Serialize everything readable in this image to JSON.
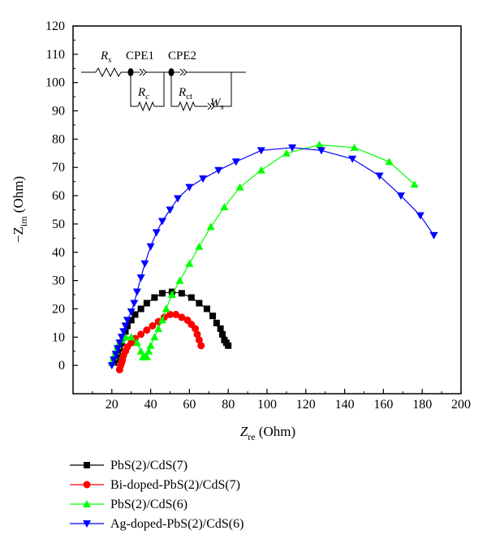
{
  "chart_data": {
    "type": "scatter",
    "xlabel_main": "Z",
    "xlabel_sub": "re",
    "xlabel_unit": " (Ohm)",
    "ylabel_prefix": "−Z",
    "ylabel_sub": "im",
    "ylabel_unit": " (Ohm)",
    "xlim": [
      0,
      200
    ],
    "ylim": [
      -10,
      120
    ],
    "xticks": [
      20,
      40,
      60,
      80,
      100,
      120,
      140,
      160,
      180,
      200
    ],
    "yticks": [
      0,
      10,
      20,
      30,
      40,
      50,
      60,
      70,
      80,
      90,
      100,
      110,
      120
    ],
    "legend_position": "below",
    "series": [
      {
        "name": "PbS(2)/CdS(7)",
        "color": "#000000",
        "marker": "square",
        "x": [
          21,
          22,
          23,
          24,
          25,
          26,
          27,
          28,
          30,
          32,
          35,
          38,
          42,
          46,
          51,
          56,
          61,
          65,
          69,
          72,
          74,
          76,
          77,
          78,
          79,
          80
        ],
        "y": [
          1,
          2,
          4,
          6,
          8,
          10,
          12,
          14,
          16,
          18,
          20,
          22,
          24,
          25.5,
          26,
          25.5,
          24,
          22,
          20,
          17.5,
          15,
          13,
          11,
          9,
          8,
          7
        ]
      },
      {
        "name": "Bi-doped-PbS(2)/CdS(7)",
        "color": "#ff0000",
        "marker": "circle",
        "x": [
          24,
          24.5,
          25,
          25.5,
          26,
          27,
          28,
          30,
          32,
          35,
          38,
          41,
          44,
          47,
          50,
          53,
          56,
          59,
          61,
          63,
          64,
          65,
          66
        ],
        "y": [
          -1.5,
          0,
          1,
          2,
          3.5,
          5,
          6.5,
          8,
          9.5,
          11,
          12.5,
          14,
          15.5,
          17,
          18,
          18,
          17,
          16,
          14.5,
          13,
          11,
          9,
          7
        ]
      },
      {
        "name": "PbS(2)/CdS(6)",
        "color": "#00ff00",
        "marker": "triangle-up",
        "x": [
          20,
          21,
          22,
          23,
          25,
          27,
          30,
          33,
          35,
          36,
          37,
          38,
          39,
          40,
          42,
          44,
          46,
          48,
          51,
          55,
          60,
          65,
          71,
          78,
          86,
          97,
          110,
          127,
          145,
          163,
          176
        ],
        "y": [
          1,
          3,
          5,
          7,
          9,
          10,
          10,
          8,
          5,
          3,
          3,
          3,
          5,
          7,
          10,
          13,
          16,
          20,
          25,
          30,
          36,
          42,
          49,
          56,
          63,
          69,
          75,
          78,
          77,
          72,
          64
        ]
      },
      {
        "name": "Ag-doped-PbS(2)/CdS(6)",
        "color": "#0000ff",
        "marker": "triangle-down",
        "x": [
          20,
          21,
          22,
          23,
          24,
          25,
          26,
          27,
          28,
          30,
          31.5,
          33,
          35,
          37,
          40,
          43,
          46,
          50,
          54,
          60,
          67,
          75,
          84,
          97,
          113,
          128,
          144,
          158,
          169,
          179,
          186
        ],
        "y": [
          0,
          2,
          4,
          6,
          8,
          10,
          12,
          14,
          16,
          19,
          22,
          26,
          31,
          36,
          42,
          47,
          51,
          55,
          59,
          63,
          66,
          69,
          72,
          76,
          77,
          76,
          73,
          67,
          60,
          53,
          46
        ]
      }
    ],
    "inset_circuit": {
      "labels": [
        "R",
        "s",
        "CPE1",
        "CPE2",
        "R",
        "c",
        "R",
        "ct",
        "W",
        "s"
      ]
    }
  }
}
